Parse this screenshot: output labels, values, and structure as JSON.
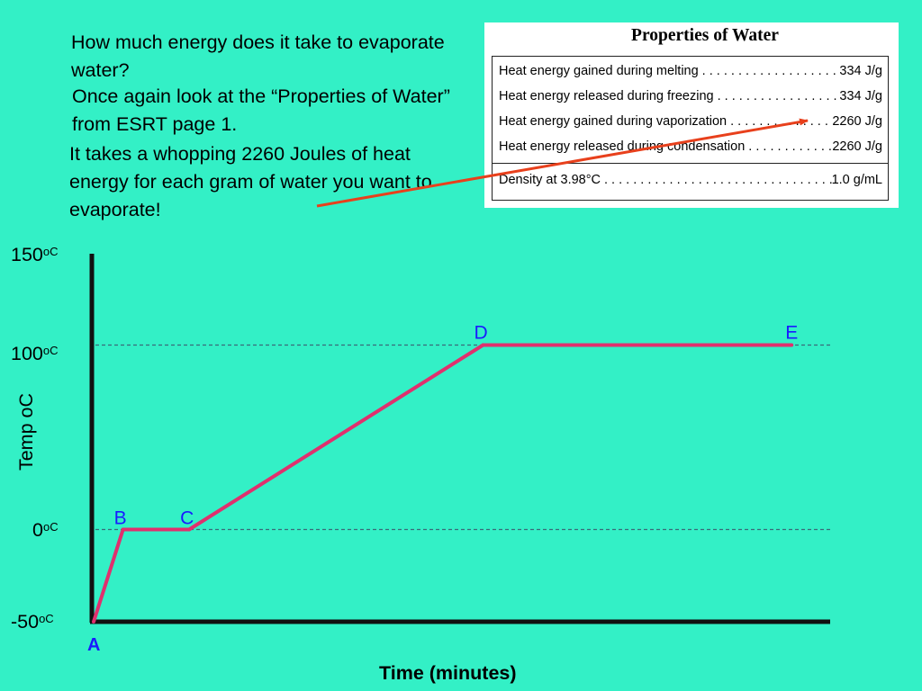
{
  "intro": {
    "question": "How much energy does it take to evaporate water?",
    "instruction": "Once again look at the “Properties of Water” from ESRT page 1.",
    "answer": "It takes a whopping 2260 Joules of heat energy for each gram of water you want to evaporate!"
  },
  "properties_table": {
    "title": "Properties of Water",
    "rows": [
      {
        "label": "Heat energy gained during melting",
        "value": "334 J/g"
      },
      {
        "label": "Heat energy released during freezing",
        "value": "334 J/g"
      },
      {
        "label": "Heat energy gained during vaporization",
        "value": "2260 J/g"
      },
      {
        "label": "Heat energy released during condensation",
        "value": "2260 J/g"
      },
      {
        "label": "Density at 3.98°C",
        "value": "1.0 g/mL"
      }
    ]
  },
  "colors": {
    "background": "#33f0c6",
    "heating_curve": "#e0306e",
    "arrow": "#e8401c",
    "point_label": "#1a1aff",
    "reference_line": "#3a6a7a"
  },
  "chart_data": {
    "type": "line",
    "title": "",
    "xlabel": "Time (minutes)",
    "ylabel": "Temp oC",
    "yticks": [
      {
        "value": -50,
        "label": "-50",
        "unit": "oC"
      },
      {
        "value": 0,
        "label": "0",
        "unit": "oC"
      },
      {
        "value": 100,
        "label": "100",
        "unit": "oC"
      },
      {
        "value": 150,
        "label": "150",
        "unit": "oC"
      }
    ],
    "ylim": [
      -50,
      150
    ],
    "xlim": [
      0,
      10
    ],
    "reference_lines": [
      0,
      100
    ],
    "grid": false,
    "series": [
      {
        "points": [
          {
            "label": "A",
            "x": 0,
            "y": -50
          },
          {
            "label": "B",
            "x": 0.4,
            "y": 0
          },
          {
            "label": "C",
            "x": 1.3,
            "y": 0
          },
          {
            "label": "D",
            "x": 5.3,
            "y": 100
          },
          {
            "label": "E",
            "x": 9.5,
            "y": 100
          }
        ]
      }
    ]
  }
}
